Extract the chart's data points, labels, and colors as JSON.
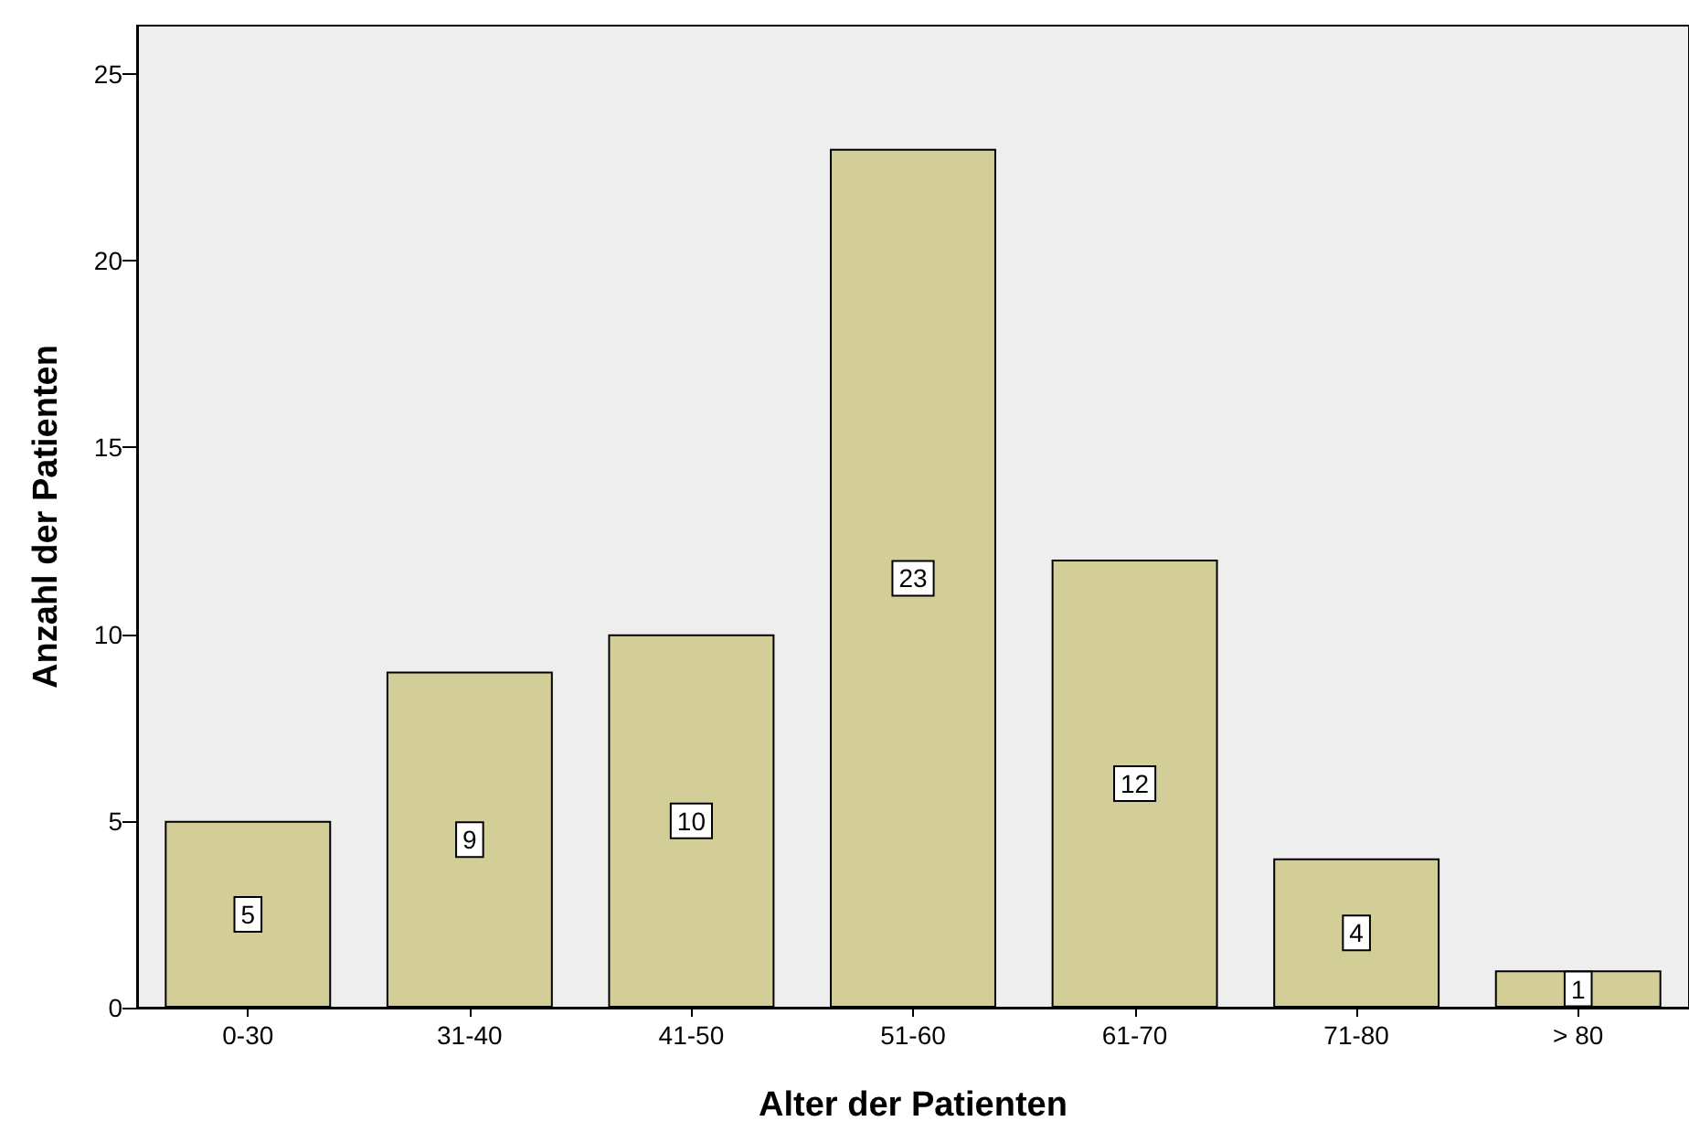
{
  "chart_data": {
    "type": "bar",
    "xlabel": "Alter der Patienten",
    "ylabel": "Anzahl der Patienten",
    "categories": [
      "0-30",
      "31-40",
      "41-50",
      "51-60",
      "61-70",
      "71-80",
      "> 80"
    ],
    "values": [
      5,
      9,
      10,
      23,
      12,
      4,
      1
    ],
    "color": "#d3ce98",
    "data_labels": true,
    "ylim": [
      0,
      26.3
    ],
    "yticks": [
      0,
      5,
      10,
      15,
      20,
      25
    ],
    "grid": false
  }
}
